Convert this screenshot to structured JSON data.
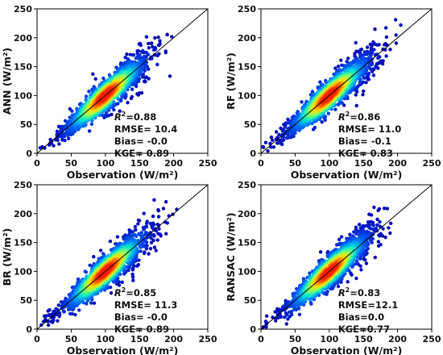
{
  "colors": {
    "density_low": "#0000b4",
    "density_mid": "#00e6d2",
    "density_high": "#ff1e00",
    "identity_line": "#000000"
  },
  "chart_data": [
    {
      "type": "scatter",
      "model": "ANN",
      "xlabel": "Observation (W/m²)",
      "ylabel": "ANN (W/m²)",
      "xlim": [
        0,
        250
      ],
      "ylim": [
        0,
        250
      ],
      "xticks": [
        0,
        50,
        100,
        150,
        200,
        250
      ],
      "yticks": [
        0,
        50,
        100,
        150,
        200,
        250
      ],
      "reference_line": "y = x",
      "stats": {
        "r2": "=0.88",
        "rmse": "RMSE= 10.4",
        "bias": "Bias= -0.0",
        "kge": "KGE= 0.89"
      }
    },
    {
      "type": "scatter",
      "model": "RF",
      "xlabel": "Observation (W/m²)",
      "ylabel": "RF (W/m²)",
      "xlim": [
        0,
        250
      ],
      "ylim": [
        0,
        250
      ],
      "xticks": [
        0,
        50,
        100,
        150,
        200,
        250
      ],
      "yticks": [
        0,
        50,
        100,
        150,
        200,
        250
      ],
      "reference_line": "y = x",
      "stats": {
        "r2": "=0.86",
        "rmse": "RMSE= 11.0",
        "bias": "Bias= -0.1",
        "kge": "KGE= 0.83"
      }
    },
    {
      "type": "scatter",
      "model": "BR",
      "xlabel": "Observation (W/m²)",
      "ylabel": "BR (W/m²)",
      "xlim": [
        0,
        250
      ],
      "ylim": [
        0,
        250
      ],
      "xticks": [
        0,
        50,
        100,
        150,
        200,
        250
      ],
      "yticks": [
        0,
        50,
        100,
        150,
        200,
        250
      ],
      "reference_line": "y = x",
      "stats": {
        "r2": "=0.85",
        "rmse": "RMSE= 11.3",
        "bias": "Bias= -0.0",
        "kge": "KGE= 0.89"
      }
    },
    {
      "type": "scatter",
      "model": "RANSAC",
      "xlabel": "Observation (W/m²)",
      "ylabel": "RANSAC (W/m²)",
      "xlim": [
        0,
        250
      ],
      "ylim": [
        0,
        250
      ],
      "xticks": [
        0,
        50,
        100,
        150,
        200,
        250
      ],
      "yticks": [
        0,
        50,
        100,
        150,
        200,
        250
      ],
      "reference_line": "y = x",
      "stats": {
        "r2": "=0.83",
        "rmse": "RMSE=12.1",
        "bias": "Bias=0.0",
        "kge": "KGE=0.77"
      }
    }
  ]
}
